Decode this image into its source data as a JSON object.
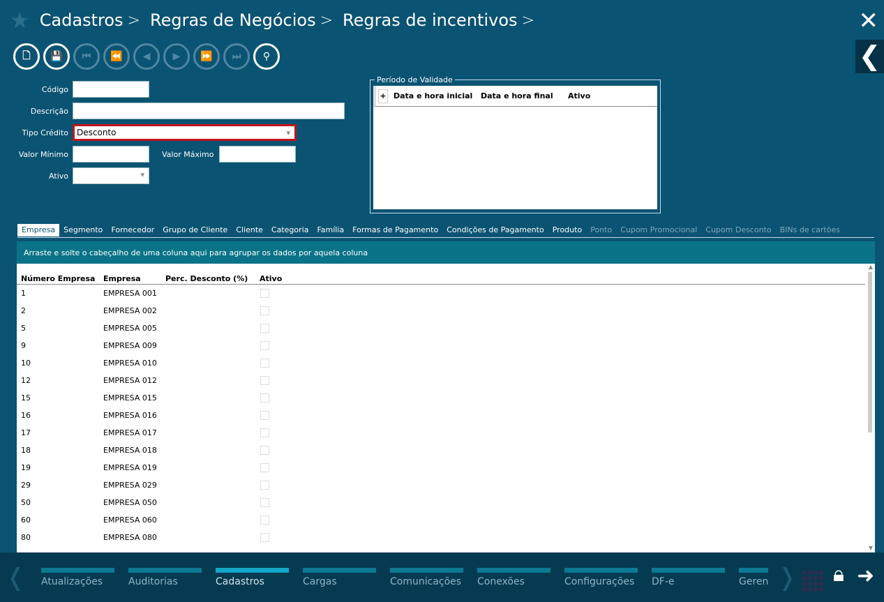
{
  "breadcrumb": [
    "Cadastros",
    "Regras de Negócios",
    "Regras de incentivos"
  ],
  "toolbar": [
    {
      "icon": "new-document-icon",
      "glyph": "🗋",
      "enabled": true
    },
    {
      "icon": "save-icon",
      "glyph": "💾",
      "enabled": true
    },
    {
      "icon": "first-icon",
      "glyph": "⏮",
      "enabled": false
    },
    {
      "icon": "rewind-icon",
      "glyph": "⏪",
      "enabled": false
    },
    {
      "icon": "previous-icon",
      "glyph": "◀",
      "enabled": false
    },
    {
      "icon": "next-icon",
      "glyph": "▶",
      "enabled": false
    },
    {
      "icon": "fast-forward-icon",
      "glyph": "⏩",
      "enabled": false
    },
    {
      "icon": "last-icon",
      "glyph": "⏭",
      "enabled": false
    },
    {
      "icon": "search-icon",
      "glyph": "⚲",
      "enabled": true
    }
  ],
  "form": {
    "codigo_label": "Código",
    "codigo": "",
    "descricao_label": "Descrição",
    "descricao": "",
    "tipo_label": "Tipo Crédito",
    "tipo": "Desconto",
    "valor_min_label": "Valor Mínimo",
    "valor_min": "",
    "valor_max_label": "Valor Máximo",
    "valor_max": "",
    "ativo_label": "Ativo",
    "ativo": ""
  },
  "periodo": {
    "legend": "Período de Validade",
    "plus": "+",
    "columns": [
      "Data e hora inicial",
      "Data e hora final",
      "Ativo"
    ]
  },
  "tabs": [
    {
      "label": "Empresa",
      "state": "active"
    },
    {
      "label": "Segmento"
    },
    {
      "label": "Fornecedor"
    },
    {
      "label": "Grupo de Cliente"
    },
    {
      "label": "Cliente"
    },
    {
      "label": "Categoria"
    },
    {
      "label": "Família"
    },
    {
      "label": "Formas de Pagamento"
    },
    {
      "label": "Condições de Pagamento"
    },
    {
      "label": "Produto"
    },
    {
      "label": "Ponto",
      "state": "disabled"
    },
    {
      "label": "Cupom Promocional",
      "state": "disabled"
    },
    {
      "label": "Cupom Desconto",
      "state": "disabled"
    },
    {
      "label": "BINs de cartões",
      "state": "disabled"
    }
  ],
  "grid": {
    "group_hint": "Arraste e solte o cabeçalho de uma coluna aqui para agrupar os dados por aquela coluna",
    "columns": [
      "Número Empresa",
      "Empresa",
      "Perc. Desconto (%)",
      "Ativo"
    ],
    "rows": [
      [
        "1",
        "EMPRESA 001"
      ],
      [
        "2",
        "EMPRESA 002"
      ],
      [
        "5",
        "EMPRESA 005"
      ],
      [
        "9",
        "EMPRESA 009"
      ],
      [
        "10",
        "EMPRESA 010"
      ],
      [
        "12",
        "EMPRESA 012"
      ],
      [
        "15",
        "EMPRESA 015"
      ],
      [
        "16",
        "EMPRESA 016"
      ],
      [
        "17",
        "EMPRESA 017"
      ],
      [
        "18",
        "EMPRESA 018"
      ],
      [
        "19",
        "EMPRESA 019"
      ],
      [
        "29",
        "EMPRESA 029"
      ],
      [
        "50",
        "EMPRESA 050"
      ],
      [
        "60",
        "EMPRESA 060"
      ],
      [
        "80",
        "EMPRESA 080"
      ]
    ]
  },
  "bottom_nav": [
    {
      "label": "Atualizações"
    },
    {
      "label": "Auditorias"
    },
    {
      "label": "Cadastros",
      "active": true
    },
    {
      "label": "Cargas"
    },
    {
      "label": "Comunicações"
    },
    {
      "label": "Conexões"
    },
    {
      "label": "Configurações"
    },
    {
      "label": "DF-e"
    },
    {
      "label": "Geren"
    }
  ],
  "colors": {
    "background": "#0b5372",
    "bottom_bar": "#063a50",
    "accent": "#13a6c8",
    "highlight_border": "#c0161c"
  }
}
